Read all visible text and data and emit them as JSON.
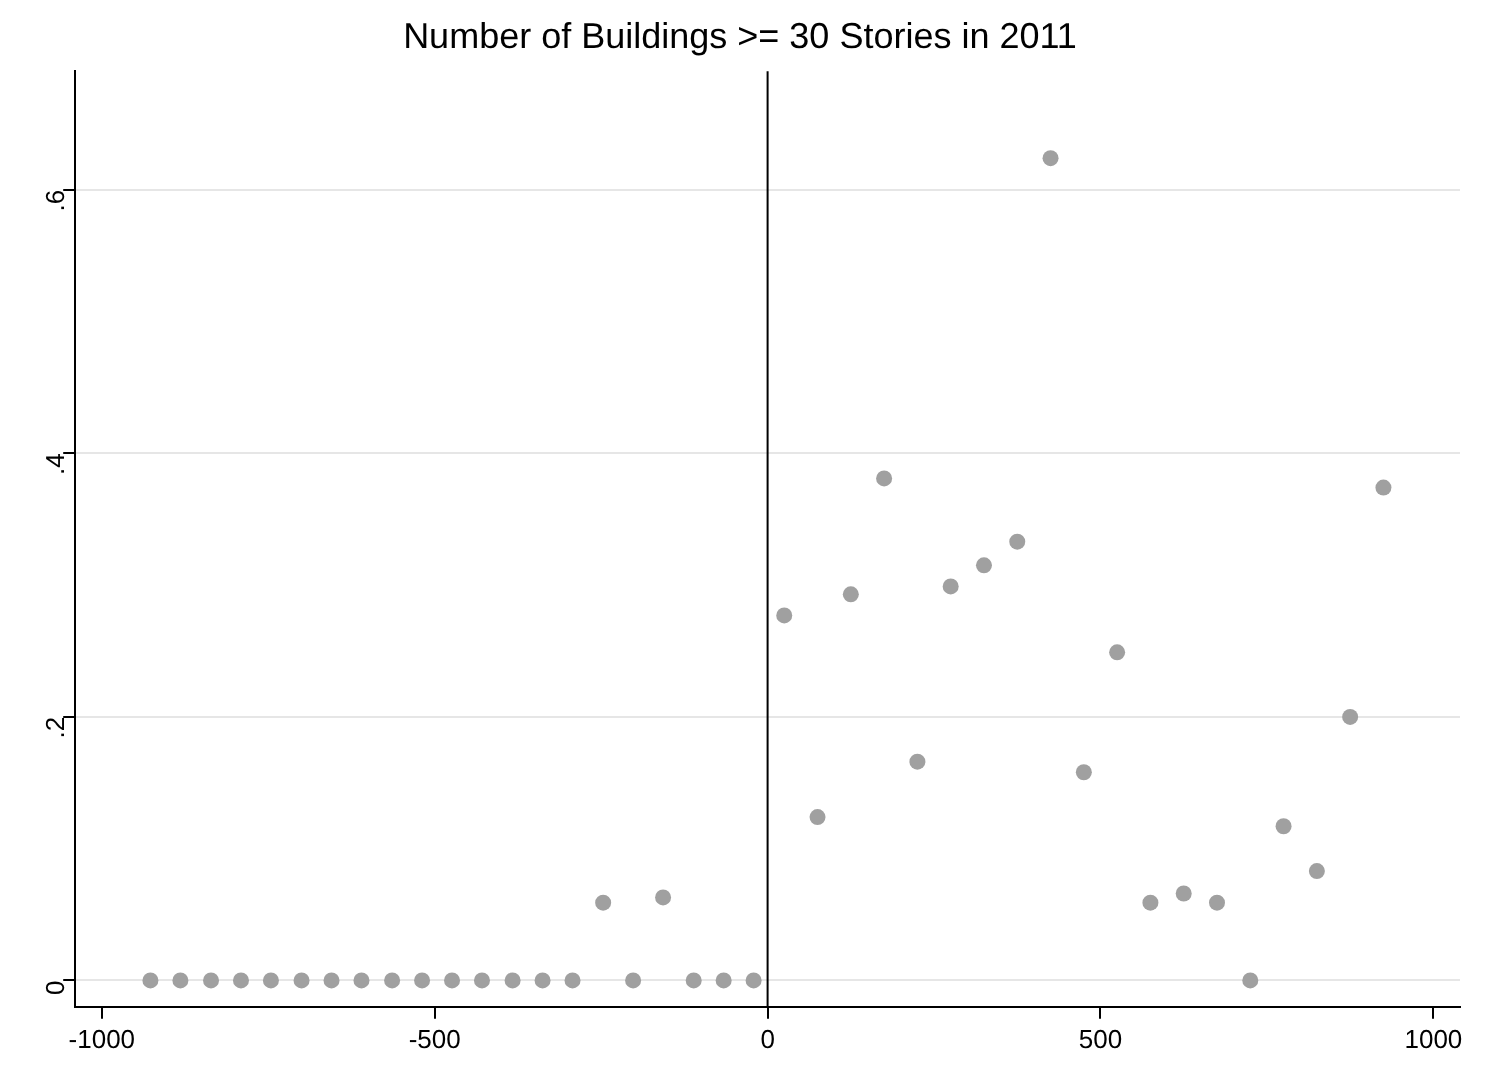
{
  "chart_data": {
    "type": "scatter",
    "title": "Number of Buildings >= 30 Stories in 2011",
    "x": [
      -927,
      -882,
      -836,
      -791,
      -746,
      -700,
      -655,
      -610,
      -564,
      -519,
      -474,
      -429,
      -383,
      -338,
      -293,
      -247,
      -202,
      -157,
      -111,
      -66,
      -21,
      25,
      75,
      125,
      175,
      225,
      275,
      325,
      375,
      425,
      475,
      525,
      575,
      625,
      675,
      725,
      775,
      825,
      875,
      925
    ],
    "series": [
      {
        "color": "#a0a0a0",
        "values": [
          0,
          0,
          0,
          0,
          0,
          0,
          0,
          0,
          0,
          0,
          0,
          0,
          0,
          0,
          0,
          0.059,
          0,
          0.063,
          0,
          0,
          0,
          0.277,
          0.124,
          0.293,
          0.381,
          0.166,
          0.299,
          0.315,
          0.333,
          0.624,
          0.158,
          0.249,
          0.059,
          0.066,
          0.059,
          0,
          0.117,
          0.083,
          0.2,
          0.374
        ]
      }
    ],
    "xlim": [
      -1040,
      1040
    ],
    "xticks": [
      -1000,
      -500,
      0,
      500,
      1000
    ],
    "ylim": [
      -0.02,
      0.69
    ],
    "yticks": [
      {
        "value": 0,
        "label": "0"
      },
      {
        "value": 0.2,
        "label": ".2"
      },
      {
        "value": 0.4,
        "label": ".4"
      },
      {
        "value": 0.6,
        "label": ".6"
      }
    ],
    "ref_lines": [
      {
        "axis": "x",
        "value": 0,
        "color": "#000000"
      }
    ],
    "grid": "y",
    "marker": "circle",
    "legend": false
  }
}
